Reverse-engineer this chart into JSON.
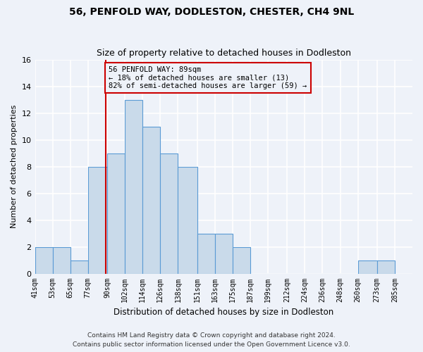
{
  "title": "56, PENFOLD WAY, DODLESTON, CHESTER, CH4 9NL",
  "subtitle": "Size of property relative to detached houses in Dodleston",
  "xlabel": "Distribution of detached houses by size in Dodleston",
  "ylabel": "Number of detached properties",
  "bin_labels": [
    "41sqm",
    "53sqm",
    "65sqm",
    "77sqm",
    "90sqm",
    "102sqm",
    "114sqm",
    "126sqm",
    "138sqm",
    "151sqm",
    "163sqm",
    "175sqm",
    "187sqm",
    "199sqm",
    "212sqm",
    "224sqm",
    "236sqm",
    "248sqm",
    "260sqm",
    "273sqm",
    "285sqm"
  ],
  "bin_edges": [
    41,
    53,
    65,
    77,
    90,
    102,
    114,
    126,
    138,
    151,
    163,
    175,
    187,
    199,
    212,
    224,
    236,
    248,
    260,
    273,
    285,
    297
  ],
  "counts": [
    2,
    2,
    1,
    8,
    9,
    13,
    11,
    9,
    8,
    3,
    3,
    2,
    0,
    0,
    0,
    0,
    0,
    0,
    1,
    1,
    0
  ],
  "bar_facecolor": "#c9daea",
  "bar_edgecolor": "#5b9bd5",
  "property_line_x": 89,
  "property_line_color": "#cc0000",
  "annotation_line1": "56 PENFOLD WAY: 89sqm",
  "annotation_line2": "← 18% of detached houses are smaller (13)",
  "annotation_line3": "82% of semi-detached houses are larger (59) →",
  "annotation_box_edgecolor": "#cc0000",
  "annotation_fontsize": 7.5,
  "ylim": [
    0,
    16
  ],
  "yticks": [
    0,
    2,
    4,
    6,
    8,
    10,
    12,
    14,
    16
  ],
  "footer_line1": "Contains HM Land Registry data © Crown copyright and database right 2024.",
  "footer_line2": "Contains public sector information licensed under the Open Government Licence v3.0.",
  "background_color": "#eef2f9",
  "grid_color": "#ffffff",
  "title_fontsize": 10,
  "subtitle_fontsize": 9,
  "xlabel_fontsize": 8.5,
  "ylabel_fontsize": 8,
  "footer_fontsize": 6.5,
  "xtick_fontsize": 7,
  "ytick_fontsize": 8
}
